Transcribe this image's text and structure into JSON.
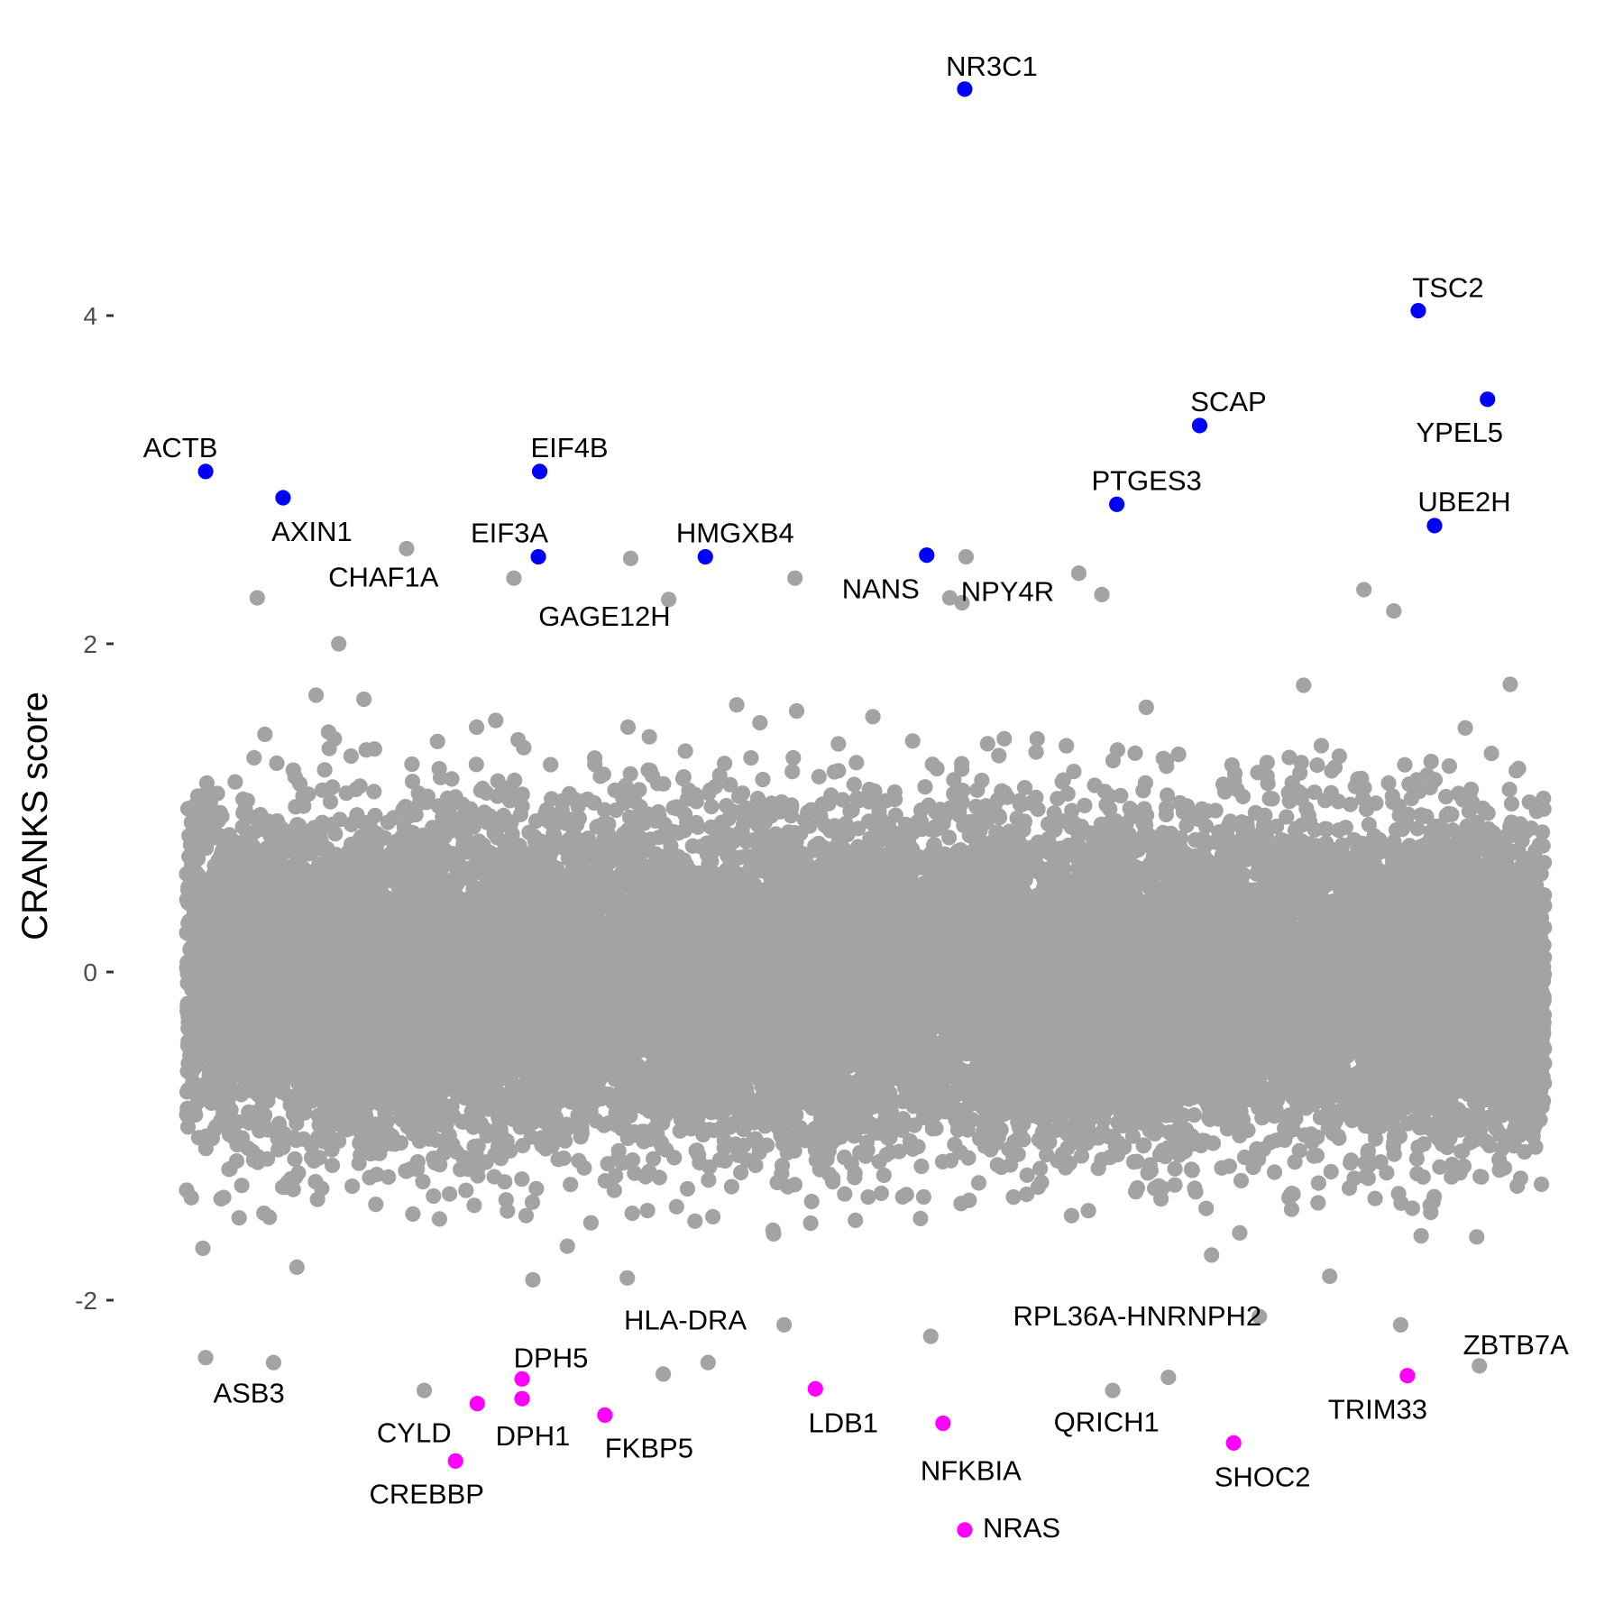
{
  "chart_data": {
    "type": "scatter",
    "title": "",
    "xlabel": "",
    "ylabel": "CRANKS score",
    "ylim": [
      -3.4,
      5.55
    ],
    "yticks": [
      -2,
      0,
      2,
      4
    ],
    "xlim": [
      0,
      1
    ],
    "x_axis_visible": false,
    "grid": false,
    "legend": "none",
    "colors": {
      "background": "#ffffff",
      "points": "#a3a3a3",
      "positive_hits": "#0000ff",
      "negative_hits": "#ff00ff",
      "labels": "#000000",
      "tick_text": "#4d4d4d"
    },
    "background_cloud": {
      "description_note_omitted": true,
      "n": 19000,
      "y_mean": -0.05,
      "y_sd": 0.48,
      "seed": 7
    },
    "grey_outliers": [
      {
        "x": 0.014,
        "y": -2.35
      },
      {
        "x": 0.064,
        "y": -2.38
      },
      {
        "x": 0.175,
        "y": -2.55
      },
      {
        "x": 0.351,
        "y": -2.45
      },
      {
        "x": 0.384,
        "y": -2.38
      },
      {
        "x": 0.44,
        "y": -2.15
      },
      {
        "x": 0.548,
        "y": -2.22
      },
      {
        "x": 0.682,
        "y": -2.55
      },
      {
        "x": 0.723,
        "y": -2.47
      },
      {
        "x": 0.79,
        "y": -2.1
      },
      {
        "x": 0.894,
        "y": -2.15
      },
      {
        "x": 0.952,
        "y": -2.4
      },
      {
        "x": 0.162,
        "y": 2.58
      },
      {
        "x": 0.327,
        "y": 2.52
      },
      {
        "x": 0.355,
        "y": 2.27
      },
      {
        "x": 0.448,
        "y": 2.4
      },
      {
        "x": 0.562,
        "y": 2.28
      },
      {
        "x": 0.571,
        "y": 2.25
      },
      {
        "x": 0.574,
        "y": 2.53
      },
      {
        "x": 0.657,
        "y": 2.43
      },
      {
        "x": 0.674,
        "y": 2.3
      },
      {
        "x": 0.052,
        "y": 2.28
      },
      {
        "x": 0.241,
        "y": 2.4
      },
      {
        "x": 0.112,
        "y": 2.0
      },
      {
        "x": 0.867,
        "y": 2.33
      },
      {
        "x": 0.889,
        "y": 2.2
      }
    ],
    "highlighted_genes": [
      {
        "label": "NR3C1",
        "x": 0.573,
        "y": 5.38,
        "group": "positive"
      },
      {
        "label": "TSC2",
        "x": 0.907,
        "y": 4.03,
        "group": "positive"
      },
      {
        "label": "YPEL5",
        "x": 0.958,
        "y": 3.49,
        "group": "positive"
      },
      {
        "label": "SCAP",
        "x": 0.746,
        "y": 3.33,
        "group": "positive"
      },
      {
        "label": "ACTB",
        "x": 0.014,
        "y": 3.05,
        "group": "positive"
      },
      {
        "label": "EIF4B",
        "x": 0.26,
        "y": 3.05,
        "group": "positive"
      },
      {
        "label": "AXIN1",
        "x": 0.071,
        "y": 2.89,
        "group": "positive"
      },
      {
        "label": "PTGES3",
        "x": 0.685,
        "y": 2.85,
        "group": "positive"
      },
      {
        "label": "UBE2H",
        "x": 0.919,
        "y": 2.72,
        "group": "positive"
      },
      {
        "label": "EIF3A",
        "x": 0.259,
        "y": 2.53,
        "group": "positive"
      },
      {
        "label": "HMGXB4",
        "x": 0.382,
        "y": 2.53,
        "group": "positive"
      },
      {
        "label": "NANS",
        "x": 0.545,
        "y": 2.54,
        "group": "positive"
      },
      {
        "label": "CHAF1A",
        "x": 0.123,
        "y": 2.26,
        "group": "neutral"
      },
      {
        "label": "GAGE12H",
        "x": 0.246,
        "y": 2.39,
        "group": "neutral"
      },
      {
        "label": "NPY4R",
        "x": 0.572,
        "y": 2.53,
        "group": "neutral"
      },
      {
        "label": "ASB3",
        "x": 0.014,
        "y": -2.35,
        "group": "neutral"
      },
      {
        "label": "HLA-DRA",
        "x": 0.35,
        "y": -2.25,
        "group": "neutral"
      },
      {
        "label": "RPL36A-HNRNPH2",
        "x": 0.637,
        "y": -2.22,
        "group": "neutral"
      },
      {
        "label": "QRICH1",
        "x": 0.698,
        "y": -2.53,
        "group": "neutral"
      },
      {
        "label": "ZBTB7A",
        "x": 0.957,
        "y": -2.4,
        "group": "neutral"
      },
      {
        "label": "DPH5",
        "x": 0.247,
        "y": -2.48,
        "group": "negative"
      },
      {
        "label": "DPH1",
        "x": 0.247,
        "y": -2.6,
        "group": "negative"
      },
      {
        "label": "CYLD",
        "x": 0.214,
        "y": -2.63,
        "group": "negative"
      },
      {
        "label": "CREBBP",
        "x": 0.198,
        "y": -2.98,
        "group": "negative"
      },
      {
        "label": "FKBP5",
        "x": 0.308,
        "y": -2.7,
        "group": "negative"
      },
      {
        "label": "LDB1",
        "x": 0.463,
        "y": -2.54,
        "group": "negative"
      },
      {
        "label": "NFKBIA",
        "x": 0.557,
        "y": -2.75,
        "group": "negative"
      },
      {
        "label": "NRAS",
        "x": 0.573,
        "y": -3.4,
        "group": "negative"
      },
      {
        "label": "SHOC2",
        "x": 0.771,
        "y": -2.87,
        "group": "negative"
      },
      {
        "label": "TRIM33",
        "x": 0.899,
        "y": -2.46,
        "group": "negative"
      }
    ]
  }
}
